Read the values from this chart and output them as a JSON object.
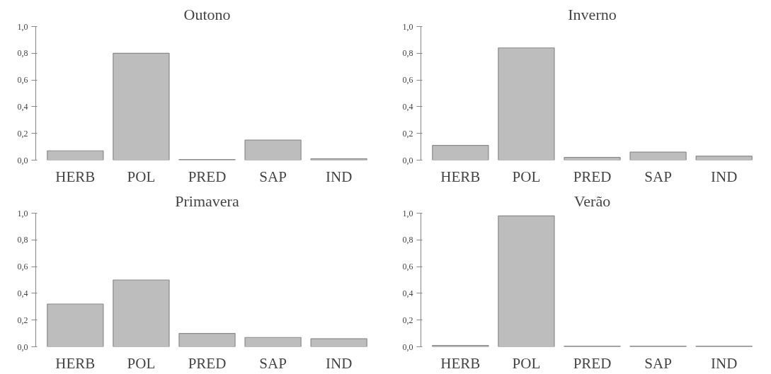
{
  "chart_data": [
    {
      "type": "bar",
      "title": "Outono",
      "categories": [
        "HERB",
        "POL",
        "PRED",
        "SAP",
        "IND"
      ],
      "values": [
        0.07,
        0.8,
        0.005,
        0.15,
        0.01
      ],
      "color": "#bdbdbd",
      "ylim": [
        0,
        1.0
      ],
      "yticks": [
        {
          "value": 0,
          "label": "0,0"
        },
        {
          "value": 0.2,
          "label": "0,2"
        },
        {
          "value": 0.4,
          "label": "0,4"
        },
        {
          "value": 0.6,
          "label": "0,6"
        },
        {
          "value": 0.8,
          "label": "0,8"
        },
        {
          "value": 1.0,
          "label": "1,0"
        }
      ],
      "grid": false
    },
    {
      "type": "bar",
      "title": "Inverno",
      "categories": [
        "HERB",
        "POL",
        "PRED",
        "SAP",
        "IND"
      ],
      "values": [
        0.11,
        0.84,
        0.02,
        0.06,
        0.03
      ],
      "color": "#bdbdbd",
      "ylim": [
        0,
        1.0
      ],
      "yticks": [
        {
          "value": 0,
          "label": "0,0"
        },
        {
          "value": 0.2,
          "label": "0,2"
        },
        {
          "value": 0.4,
          "label": "0,4"
        },
        {
          "value": 0.6,
          "label": "0,6"
        },
        {
          "value": 0.8,
          "label": "0,8"
        },
        {
          "value": 1.0,
          "label": "1,0"
        }
      ],
      "grid": false
    },
    {
      "type": "bar",
      "title": "Primavera",
      "categories": [
        "HERB",
        "POL",
        "PRED",
        "SAP",
        "IND"
      ],
      "values": [
        0.32,
        0.5,
        0.1,
        0.07,
        0.06
      ],
      "color": "#bdbdbd",
      "ylim": [
        0,
        1.0
      ],
      "yticks": [
        {
          "value": 0,
          "label": "0,0"
        },
        {
          "value": 0.2,
          "label": "0,2"
        },
        {
          "value": 0.4,
          "label": "0,4"
        },
        {
          "value": 0.6,
          "label": "0,6"
        },
        {
          "value": 0.8,
          "label": "0,8"
        },
        {
          "value": 1.0,
          "label": "1,0"
        }
      ],
      "grid": false
    },
    {
      "type": "bar",
      "title": "Verão",
      "categories": [
        "HERB",
        "POL",
        "PRED",
        "SAP",
        "IND"
      ],
      "values": [
        0.01,
        0.98,
        0.005,
        0.005,
        0.005
      ],
      "color": "#bdbdbd",
      "ylim": [
        0,
        1.0
      ],
      "yticks": [
        {
          "value": 0,
          "label": "0,0"
        },
        {
          "value": 0.2,
          "label": "0,2"
        },
        {
          "value": 0.4,
          "label": "0,4"
        },
        {
          "value": 0.6,
          "label": "0,6"
        },
        {
          "value": 0.8,
          "label": "0,8"
        },
        {
          "value": 1.0,
          "label": "1,0"
        }
      ],
      "grid": false
    }
  ]
}
